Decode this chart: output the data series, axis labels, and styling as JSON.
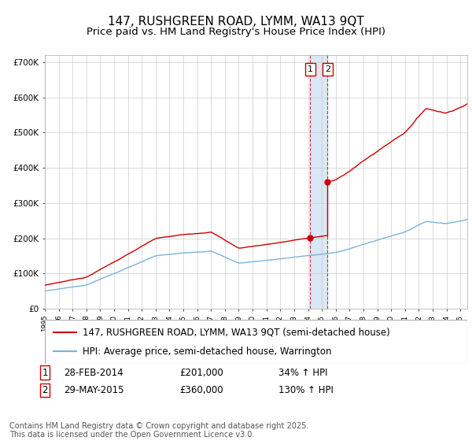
{
  "title": "147, RUSHGREEN ROAD, LYMM, WA13 9QT",
  "subtitle": "Price paid vs. HM Land Registry's House Price Index (HPI)",
  "ylim": [
    0,
    720000
  ],
  "yticks": [
    0,
    100000,
    200000,
    300000,
    400000,
    500000,
    600000,
    700000
  ],
  "ytick_labels": [
    "£0",
    "£100K",
    "£200K",
    "£300K",
    "£400K",
    "£500K",
    "£600K",
    "£700K"
  ],
  "x_start_year": 1995,
  "x_end_year": 2025,
  "hpi_color": "#7ab4d8",
  "price_color": "#cc0000",
  "sale1_date": 2014.16,
  "sale1_price": 201000,
  "sale2_date": 2015.41,
  "sale2_price": 360000,
  "shade_color": "#d8e8f5",
  "legend_line1": "147, RUSHGREEN ROAD, LYMM, WA13 9QT (semi-detached house)",
  "legend_line2": "HPI: Average price, semi-detached house, Warrington",
  "footer": "Contains HM Land Registry data © Crown copyright and database right 2025.\nThis data is licensed under the Open Government Licence v3.0.",
  "background_color": "#ffffff",
  "grid_color": "#cccccc",
  "title_fontsize": 11,
  "subtitle_fontsize": 9.5,
  "tick_fontsize": 7.5,
  "legend_fontsize": 8.5,
  "annotation_fontsize": 8.5,
  "footer_fontsize": 7
}
